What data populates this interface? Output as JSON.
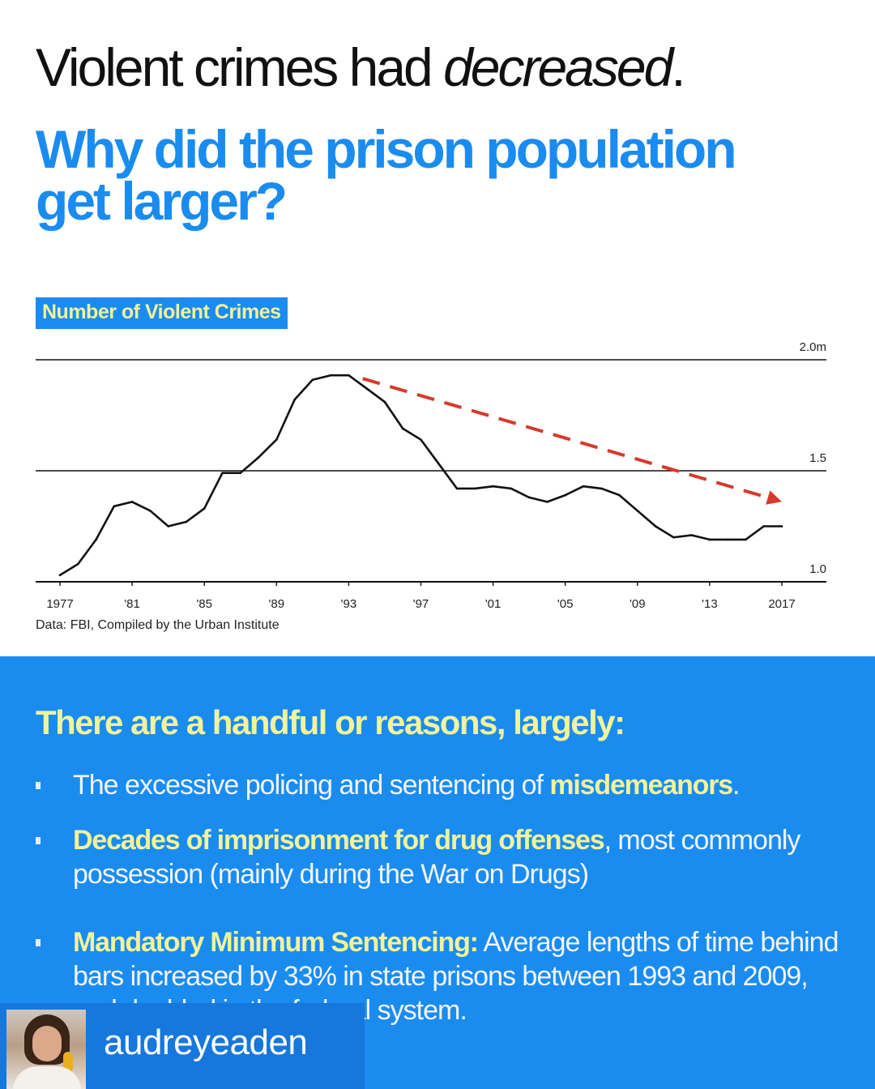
{
  "headline": {
    "prefix": "Violent crimes had ",
    "emphasis": "decreased",
    "suffix": "."
  },
  "question": {
    "line1": "Why did the prison population",
    "line2": "get larger?"
  },
  "chart_data": {
    "type": "line",
    "title": "Number of Violent Crimes",
    "source": "Data: FBI, Compiled by the Urban Institute",
    "x_tick_labels": [
      "1977",
      "'81",
      "'85",
      "'89",
      "'93",
      "'97",
      "'01",
      "'05",
      "'09",
      "'13",
      "2017"
    ],
    "x_ticks": [
      1977,
      1981,
      1985,
      1989,
      1993,
      1997,
      2001,
      2005,
      2009,
      2013,
      2017
    ],
    "y_tick_labels": [
      "2.0m",
      "1.5",
      "1.0"
    ],
    "y_ticks": [
      2.0,
      1.5,
      1.0
    ],
    "xlim": [
      1977,
      2017
    ],
    "ylim": [
      1.0,
      2.0
    ],
    "grid": "horizontal",
    "series": [
      {
        "x": [
          1977,
          1978,
          1979,
          1980,
          1981,
          1982,
          1983,
          1984,
          1985,
          1986,
          1987,
          1988,
          1989,
          1990,
          1991,
          1992,
          1993,
          1994,
          1995,
          1996,
          1997,
          1998,
          1999,
          2000,
          2001,
          2002,
          2003,
          2004,
          2005,
          2006,
          2007,
          2008,
          2009,
          2010,
          2011,
          2012,
          2013,
          2014,
          2015,
          2016,
          2017
        ],
        "values": [
          1.03,
          1.08,
          1.19,
          1.34,
          1.36,
          1.32,
          1.25,
          1.27,
          1.33,
          1.49,
          1.49,
          1.56,
          1.64,
          1.82,
          1.91,
          1.93,
          1.93,
          1.87,
          1.81,
          1.69,
          1.64,
          1.53,
          1.42,
          1.42,
          1.43,
          1.42,
          1.38,
          1.36,
          1.39,
          1.43,
          1.42,
          1.39,
          1.32,
          1.25,
          1.2,
          1.21,
          1.19,
          1.19,
          1.19,
          1.25,
          1.25
        ],
        "color": "#111111"
      }
    ],
    "annotation": {
      "type": "dashed-arrow",
      "color": "#d8392b",
      "from": {
        "x": 1994,
        "value": 1.93
      },
      "to": {
        "x": 2017,
        "value": 1.39
      }
    }
  },
  "reasons": {
    "heading": "There are a handful or reasons, largely:",
    "item1": {
      "text": "The excessive policing and sentencing of ",
      "highlight": "misdemeanors",
      "suffix": "."
    },
    "item2": {
      "highlight": "Decades of imprisonment for drug offenses",
      "text": ", most commonly possession (mainly during the War on Drugs)"
    },
    "item3": {
      "highlight": "Mandatory Minimum Sentencing:",
      "text": " Average lengths of time behind bars increased by 33% in state prisons between 1993 and 2009, and doubled in the federal system."
    }
  },
  "watermark": {
    "handle": "audreyeaden"
  },
  "colors": {
    "accent_blue": "#1a8cf0",
    "highlight_yellow": "#f2f39a",
    "arrow_red": "#d8392b"
  }
}
